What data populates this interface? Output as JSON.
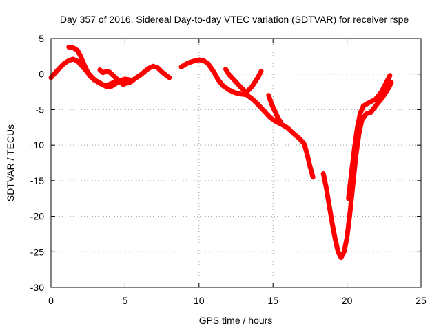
{
  "chart_data": {
    "type": "scatter",
    "title": "Day 357 of 2016, Sidereal Day-to-day VTEC variation (SDTVAR) for receiver rspe",
    "xlabel": "GPS time / hours",
    "ylabel": "SDTVAR / TECUs",
    "xlim": [
      0,
      25
    ],
    "ylim": [
      -30,
      5
    ],
    "xticks": [
      0,
      5,
      10,
      15,
      20,
      25
    ],
    "yticks": [
      -30,
      -25,
      -20,
      -15,
      -10,
      -5,
      0,
      5
    ],
    "grid": true,
    "marker": "plus",
    "color": "#ff0000",
    "series": [
      {
        "name": "seg-1",
        "x": [
          0.0,
          0.3,
          0.6,
          0.9,
          1.2,
          1.5,
          1.8,
          2.1,
          2.4,
          2.7,
          3.0,
          3.3,
          3.6,
          3.9,
          4.2,
          4.5,
          4.8,
          5.1,
          5.4,
          5.7,
          6.0,
          6.3,
          6.6,
          6.9,
          7.2,
          7.5,
          7.8,
          8.0
        ],
        "y": [
          -0.5,
          0.2,
          0.9,
          1.5,
          1.9,
          2.1,
          1.8,
          1.1,
          0.4,
          -0.3,
          -0.9,
          -1.3,
          -1.6,
          -1.5,
          -1.2,
          -1.0,
          -1.1,
          -1.3,
          -1.1,
          -0.6,
          -0.2,
          0.3,
          0.8,
          1.1,
          0.9,
          0.3,
          -0.2,
          -0.5
        ]
      },
      {
        "name": "seg-2",
        "x": [
          1.2,
          1.5,
          1.8,
          2.0,
          2.2,
          2.4,
          2.6,
          2.9,
          3.2,
          3.5,
          3.8,
          4.1,
          4.4,
          4.7,
          5.0,
          5.3
        ],
        "y": [
          3.8,
          3.7,
          3.3,
          2.5,
          1.5,
          0.6,
          -0.2,
          -0.8,
          -1.1,
          -1.5,
          -1.8,
          -1.7,
          -1.3,
          -0.9,
          -0.7,
          -0.8
        ]
      },
      {
        "name": "seg-3",
        "x": [
          3.3,
          3.5,
          3.8,
          4.0,
          4.3,
          4.6,
          4.9
        ],
        "y": [
          0.6,
          0.2,
          0.4,
          0.2,
          -0.4,
          -1.0,
          -1.5
        ]
      },
      {
        "name": "seg-4",
        "x": [
          8.8,
          9.2,
          9.6,
          10.0,
          10.3,
          10.6,
          11.0,
          11.3,
          11.6,
          12.0,
          12.4,
          12.8,
          13.2,
          13.6,
          14.0,
          14.4,
          14.8,
          15.2,
          15.6,
          16.0,
          16.4,
          16.8,
          17.1,
          17.3,
          17.5,
          17.7
        ],
        "y": [
          1.0,
          1.5,
          1.8,
          2.0,
          1.9,
          1.5,
          0.3,
          -0.8,
          -1.6,
          -2.2,
          -2.6,
          -2.8,
          -2.9,
          -3.5,
          -4.3,
          -5.2,
          -6.1,
          -6.7,
          -7.1,
          -7.6,
          -8.4,
          -9.1,
          -9.8,
          -11.2,
          -13.0,
          -14.5
        ]
      },
      {
        "name": "seg-5",
        "x": [
          11.8,
          12.0,
          12.4,
          12.8,
          13.2,
          13.6,
          14.0,
          14.2
        ],
        "y": [
          0.7,
          0.0,
          -0.9,
          -1.8,
          -2.6,
          -1.7,
          -0.4,
          0.4
        ]
      },
      {
        "name": "seg-6",
        "x": [
          14.7,
          14.9,
          15.1,
          15.3,
          15.5
        ],
        "y": [
          -3.0,
          -4.2,
          -5.1,
          -6.0,
          -6.7
        ]
      },
      {
        "name": "seg-7",
        "x": [
          18.4,
          18.6,
          18.8,
          19.0,
          19.2,
          19.4,
          19.6,
          19.8,
          20.0,
          20.2,
          20.4,
          20.6,
          20.8,
          21.0,
          21.3,
          21.6,
          22.0,
          22.4,
          22.8,
          23.0
        ],
        "y": [
          -14.0,
          -16.0,
          -18.5,
          -21.0,
          -23.2,
          -25.0,
          -25.8,
          -25.0,
          -23.0,
          -19.5,
          -15.5,
          -11.5,
          -8.5,
          -6.5,
          -5.6,
          -5.4,
          -4.3,
          -3.3,
          -2.0,
          -1.2
        ]
      },
      {
        "name": "seg-8",
        "x": [
          20.1,
          20.3,
          20.5,
          20.7,
          20.9,
          21.1,
          21.5,
          21.9,
          22.3,
          22.7,
          22.9
        ],
        "y": [
          -17.5,
          -14.0,
          -10.5,
          -7.5,
          -5.5,
          -4.5,
          -4.0,
          -3.6,
          -2.6,
          -1.0,
          -0.2
        ]
      }
    ]
  }
}
